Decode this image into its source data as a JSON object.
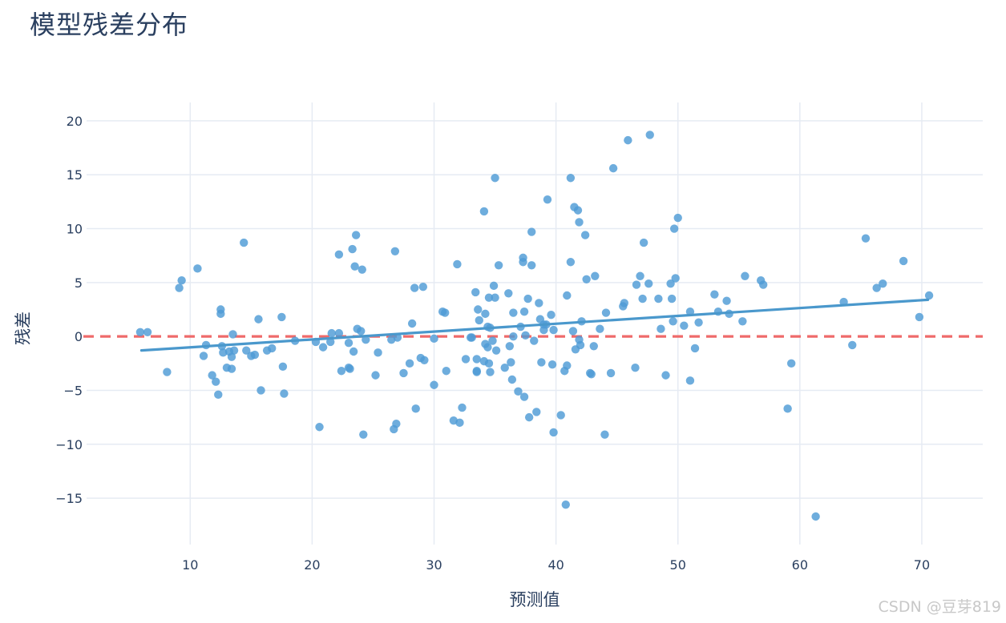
{
  "watermark": "CSDN @豆芽819",
  "chart_data": {
    "type": "scatter",
    "title": "模型残差分布",
    "xlabel": "预测值",
    "ylabel": "残差",
    "xlim": [
      1.5,
      75
    ],
    "ylim": [
      -19.3,
      21.7
    ],
    "x_ticks": [
      10,
      20,
      30,
      40,
      50,
      60,
      70
    ],
    "y_ticks": [
      -15,
      -10,
      -5,
      0,
      5,
      10,
      15,
      20
    ],
    "y_tick_labels": [
      "−15",
      "−10",
      "−5",
      "0",
      "5",
      "10",
      "15",
      "20"
    ],
    "grid": true,
    "point_color": "#4e9bd6",
    "trend_color": "#4a98cc",
    "zero_line_color": "#ef6a6a",
    "zero_line": {
      "y": 0,
      "style": "dashed"
    },
    "trend_line": {
      "x": [
        6.0,
        70.5
      ],
      "y": [
        -1.3,
        3.4
      ]
    },
    "points": [
      [
        5.9,
        0.4
      ],
      [
        6.5,
        0.4
      ],
      [
        8.1,
        -3.3
      ],
      [
        9.1,
        4.5
      ],
      [
        9.3,
        5.2
      ],
      [
        10.6,
        6.3
      ],
      [
        11.1,
        -1.8
      ],
      [
        11.3,
        -0.8
      ],
      [
        11.8,
        -3.6
      ],
      [
        12.1,
        -4.2
      ],
      [
        12.3,
        -5.4
      ],
      [
        12.5,
        2.5
      ],
      [
        12.5,
        2.1
      ],
      [
        12.6,
        -0.9
      ],
      [
        12.7,
        -1.5
      ],
      [
        13.0,
        -2.9
      ],
      [
        13.2,
        -1.4
      ],
      [
        13.4,
        -1.9
      ],
      [
        13.4,
        -3.0
      ],
      [
        13.5,
        0.2
      ],
      [
        13.6,
        -1.3
      ],
      [
        14.4,
        8.7
      ],
      [
        14.6,
        -1.3
      ],
      [
        15.0,
        -1.8
      ],
      [
        15.3,
        -1.7
      ],
      [
        15.6,
        1.6
      ],
      [
        15.8,
        -5.0
      ],
      [
        16.3,
        -1.3
      ],
      [
        16.7,
        -1.1
      ],
      [
        17.5,
        1.8
      ],
      [
        17.6,
        -2.8
      ],
      [
        17.7,
        -5.3
      ],
      [
        18.6,
        -0.4
      ],
      [
        20.3,
        -0.5
      ],
      [
        20.6,
        -8.4
      ],
      [
        20.9,
        -1.0
      ],
      [
        21.5,
        -0.5
      ],
      [
        21.6,
        0.3
      ],
      [
        22.2,
        7.6
      ],
      [
        22.2,
        0.3
      ],
      [
        22.4,
        -3.2
      ],
      [
        23.0,
        -2.9
      ],
      [
        23.0,
        -0.6
      ],
      [
        23.1,
        -3.0
      ],
      [
        23.3,
        8.1
      ],
      [
        23.4,
        -1.4
      ],
      [
        23.5,
        6.5
      ],
      [
        23.6,
        9.4
      ],
      [
        23.7,
        0.7
      ],
      [
        24.0,
        0.5
      ],
      [
        24.1,
        6.2
      ],
      [
        24.2,
        -9.1
      ],
      [
        24.4,
        -0.3
      ],
      [
        25.2,
        -3.6
      ],
      [
        25.4,
        -1.5
      ],
      [
        26.5,
        -0.3
      ],
      [
        26.7,
        -8.6
      ],
      [
        26.8,
        7.9
      ],
      [
        26.9,
        -8.1
      ],
      [
        27.0,
        -0.1
      ],
      [
        27.5,
        -3.4
      ],
      [
        28.0,
        -2.5
      ],
      [
        28.2,
        1.2
      ],
      [
        28.4,
        4.5
      ],
      [
        28.5,
        -6.7
      ],
      [
        28.9,
        -2.0
      ],
      [
        29.1,
        4.6
      ],
      [
        29.2,
        -2.2
      ],
      [
        30.0,
        -0.2
      ],
      [
        30.0,
        -4.5
      ],
      [
        30.7,
        2.3
      ],
      [
        30.9,
        2.2
      ],
      [
        31.0,
        -3.2
      ],
      [
        31.6,
        -7.8
      ],
      [
        31.9,
        6.7
      ],
      [
        32.1,
        -8.0
      ],
      [
        32.3,
        -6.6
      ],
      [
        32.6,
        -2.1
      ],
      [
        33.0,
        -0.1
      ],
      [
        33.1,
        -0.1
      ],
      [
        33.4,
        4.1
      ],
      [
        33.5,
        -2.1
      ],
      [
        33.5,
        -3.2
      ],
      [
        33.5,
        -3.3
      ],
      [
        33.6,
        2.5
      ],
      [
        33.7,
        1.5
      ],
      [
        34.1,
        11.6
      ],
      [
        34.1,
        -2.3
      ],
      [
        34.2,
        2.1
      ],
      [
        34.2,
        -0.7
      ],
      [
        34.4,
        0.9
      ],
      [
        34.4,
        -1.0
      ],
      [
        34.5,
        3.6
      ],
      [
        34.5,
        -2.5
      ],
      [
        34.6,
        0.8
      ],
      [
        34.6,
        -3.3
      ],
      [
        34.8,
        -0.4
      ],
      [
        34.9,
        4.7
      ],
      [
        35.0,
        3.6
      ],
      [
        35.0,
        14.7
      ],
      [
        35.1,
        -1.3
      ],
      [
        35.3,
        6.6
      ],
      [
        35.8,
        -2.9
      ],
      [
        36.1,
        4.0
      ],
      [
        36.2,
        -0.9
      ],
      [
        36.3,
        -2.4
      ],
      [
        36.4,
        -4.0
      ],
      [
        36.5,
        2.2
      ],
      [
        36.5,
        0.0
      ],
      [
        36.9,
        -5.1
      ],
      [
        37.1,
        0.9
      ],
      [
        37.3,
        7.3
      ],
      [
        37.3,
        6.9
      ],
      [
        37.4,
        2.3
      ],
      [
        37.4,
        -5.6
      ],
      [
        37.5,
        0.1
      ],
      [
        37.7,
        3.5
      ],
      [
        37.8,
        -7.5
      ],
      [
        38.0,
        9.7
      ],
      [
        38.0,
        6.6
      ],
      [
        38.2,
        -0.4
      ],
      [
        38.4,
        -7.0
      ],
      [
        38.6,
        3.1
      ],
      [
        38.7,
        1.6
      ],
      [
        38.8,
        -2.4
      ],
      [
        39.0,
        1.1
      ],
      [
        39.0,
        0.6
      ],
      [
        39.2,
        1.1
      ],
      [
        39.3,
        12.7
      ],
      [
        39.6,
        2.0
      ],
      [
        39.7,
        -2.6
      ],
      [
        39.8,
        0.6
      ],
      [
        39.8,
        -8.9
      ],
      [
        40.4,
        -7.3
      ],
      [
        40.7,
        -3.2
      ],
      [
        40.8,
        -15.6
      ],
      [
        40.9,
        3.8
      ],
      [
        40.9,
        -2.7
      ],
      [
        41.2,
        14.7
      ],
      [
        41.2,
        6.9
      ],
      [
        41.4,
        0.5
      ],
      [
        41.5,
        12.0
      ],
      [
        41.6,
        -1.2
      ],
      [
        41.8,
        11.7
      ],
      [
        41.9,
        -0.3
      ],
      [
        41.9,
        10.6
      ],
      [
        42.0,
        -0.8
      ],
      [
        42.1,
        1.4
      ],
      [
        42.4,
        9.4
      ],
      [
        42.5,
        5.3
      ],
      [
        42.8,
        -3.4
      ],
      [
        42.9,
        -3.5
      ],
      [
        43.1,
        -0.9
      ],
      [
        43.2,
        5.6
      ],
      [
        43.6,
        0.7
      ],
      [
        44.0,
        -9.1
      ],
      [
        44.1,
        2.2
      ],
      [
        44.5,
        -3.4
      ],
      [
        44.7,
        15.6
      ],
      [
        45.5,
        2.8
      ],
      [
        45.6,
        3.1
      ],
      [
        45.9,
        18.2
      ],
      [
        46.5,
        -2.9
      ],
      [
        46.6,
        4.8
      ],
      [
        46.9,
        5.6
      ],
      [
        47.1,
        3.5
      ],
      [
        47.2,
        8.7
      ],
      [
        47.6,
        4.9
      ],
      [
        47.7,
        18.7
      ],
      [
        48.4,
        3.5
      ],
      [
        48.6,
        0.7
      ],
      [
        49.0,
        -3.6
      ],
      [
        49.4,
        4.9
      ],
      [
        49.5,
        3.5
      ],
      [
        49.6,
        1.4
      ],
      [
        49.7,
        10.0
      ],
      [
        49.8,
        5.4
      ],
      [
        50.0,
        11.0
      ],
      [
        50.5,
        1.0
      ],
      [
        51.0,
        2.3
      ],
      [
        51.0,
        -4.1
      ],
      [
        51.4,
        -1.1
      ],
      [
        51.7,
        1.3
      ],
      [
        53.0,
        3.9
      ],
      [
        53.3,
        2.3
      ],
      [
        54.0,
        3.3
      ],
      [
        54.2,
        2.1
      ],
      [
        55.3,
        1.4
      ],
      [
        55.5,
        5.6
      ],
      [
        56.8,
        5.2
      ],
      [
        57.0,
        4.8
      ],
      [
        59.0,
        -6.7
      ],
      [
        59.3,
        -2.5
      ],
      [
        61.3,
        -16.7
      ],
      [
        63.6,
        3.2
      ],
      [
        64.3,
        -0.8
      ],
      [
        65.4,
        9.1
      ],
      [
        66.3,
        4.5
      ],
      [
        66.8,
        4.9
      ],
      [
        68.5,
        7.0
      ],
      [
        69.8,
        1.8
      ],
      [
        70.6,
        3.8
      ]
    ]
  }
}
